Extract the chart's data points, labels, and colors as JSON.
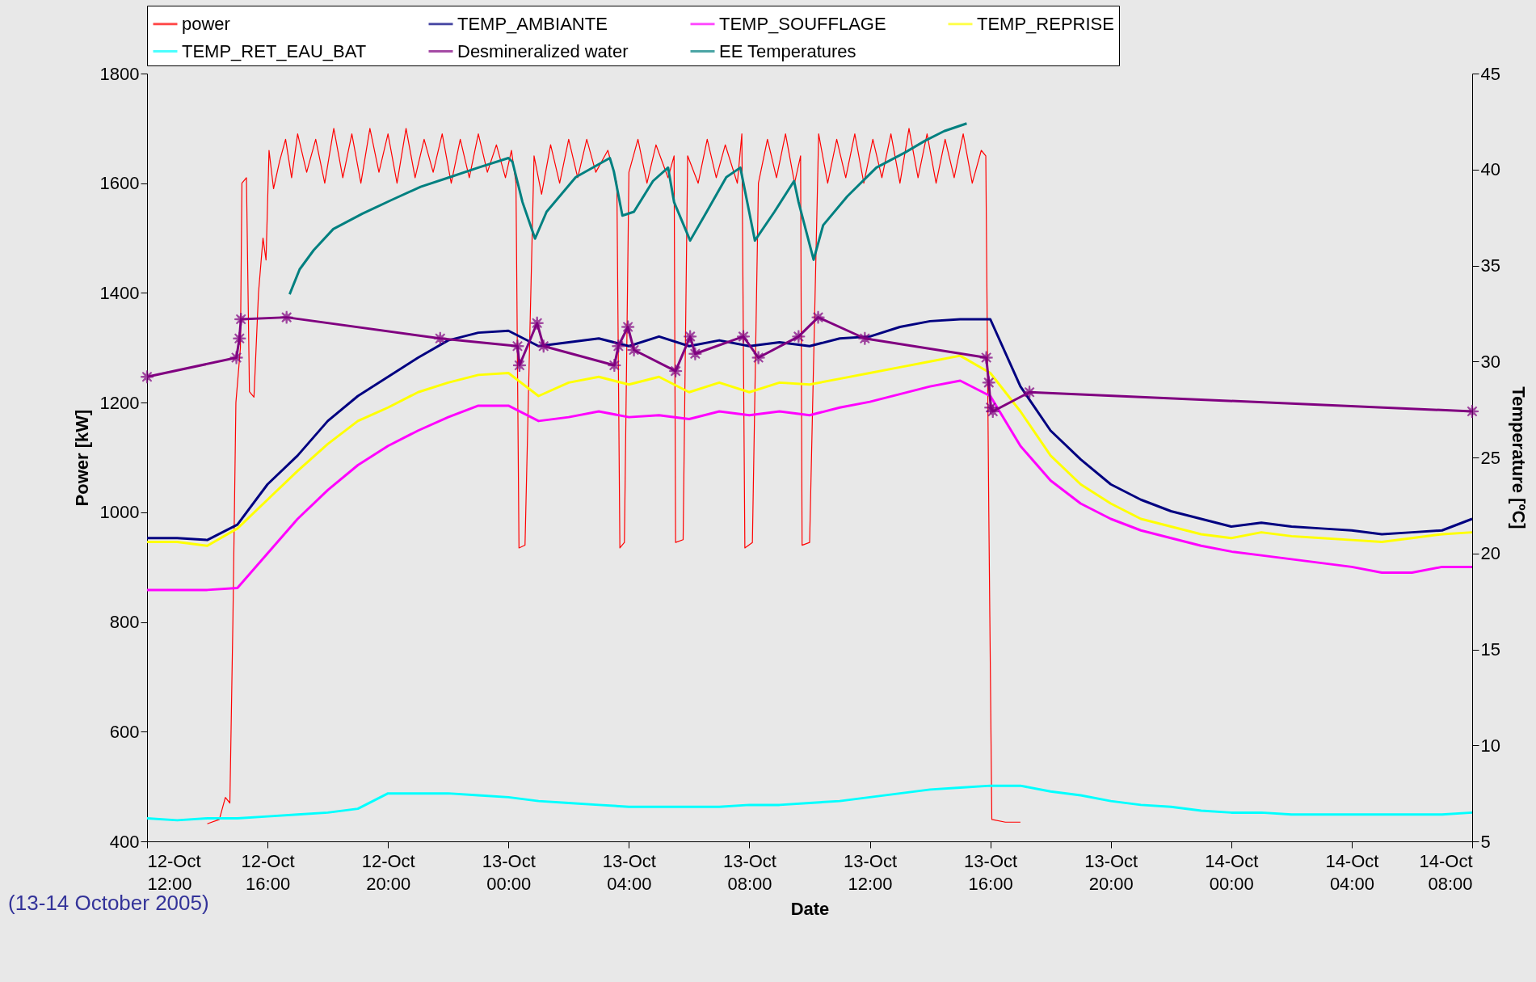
{
  "chart_data": {
    "type": "line",
    "xlabel": "Date",
    "ylabel": "Power [kW]",
    "y2label": "Temperature [ºC]",
    "legend": "top",
    "annotations": [
      "(13-14 October 2005)"
    ],
    "xlim": [
      "--10-12T12:00",
      "--10-14T08:00"
    ],
    "xticks": [
      {
        "value": "--10-12T12:00",
        "label": "12-Oct\n12:00"
      },
      {
        "value": "--10-12T16:00",
        "label": "12-Oct\n16:00"
      },
      {
        "value": "--10-12T20:00",
        "label": "12-Oct\n20:00"
      },
      {
        "value": "--10-13T00:00",
        "label": "13-Oct\n00:00"
      },
      {
        "value": "--10-13T04:00",
        "label": "13-Oct\n04:00"
      },
      {
        "value": "--10-13T08:00",
        "label": "13-Oct\n08:00"
      },
      {
        "value": "--10-13T12:00",
        "label": "13-Oct\n12:00"
      },
      {
        "value": "--10-13T16:00",
        "label": "13-Oct\n16:00"
      },
      {
        "value": "--10-13T20:00",
        "label": "13-Oct\n20:00"
      },
      {
        "value": "--10-14T00:00",
        "label": "14-Oct\n00:00"
      },
      {
        "value": "--10-14T04:00",
        "label": "14-Oct\n04:00"
      },
      {
        "value": "--10-14T08:00",
        "label": "14-Oct\n08:00"
      }
    ],
    "ylim": [
      400,
      1800
    ],
    "yticks": [
      400,
      600,
      800,
      1000,
      1200,
      1400,
      1600,
      1800
    ],
    "y2lim": [
      5,
      45
    ],
    "y2ticks": [
      5,
      10,
      15,
      20,
      25,
      30,
      35,
      40,
      45
    ],
    "x": [
      "--10-12T12:00",
      "--10-12T13:00",
      "--10-12T14:00",
      "--10-12T15:00",
      "--10-12T16:00",
      "--10-12T17:00",
      "--10-12T18:00",
      "--10-12T19:00",
      "--10-12T20:00",
      "--10-12T21:00",
      "--10-12T22:00",
      "--10-12T23:00",
      "--10-13T00:00",
      "--10-13T01:00",
      "--10-13T02:00",
      "--10-13T03:00",
      "--10-13T04:00",
      "--10-13T05:00",
      "--10-13T06:00",
      "--10-13T07:00",
      "--10-13T08:00",
      "--10-13T09:00",
      "--10-13T10:00",
      "--10-13T11:00",
      "--10-13T12:00",
      "--10-13T13:00",
      "--10-13T14:00",
      "--10-13T15:00",
      "--10-13T16:00",
      "--10-13T17:00",
      "--10-13T18:00",
      "--10-13T19:00",
      "--10-13T20:00",
      "--10-13T21:00",
      "--10-13T22:00",
      "--10-13T23:00",
      "--10-14T00:00",
      "--10-14T01:00",
      "--10-14T02:00",
      "--10-14T03:00",
      "--10-14T04:00",
      "--10-14T05:00",
      "--10-14T06:00",
      "--10-14T07:00",
      "--10-14T08:00"
    ],
    "series": [
      {
        "name": "power",
        "color": "#ff0000",
        "x": [
          "--10-12T14:00",
          "--10-12T14:24",
          "--10-12T14:36",
          "--10-12T14:45",
          "--10-12T14:51",
          "--10-12T14:57",
          "--10-12T15:06",
          "--10-12T15:09",
          "--10-12T15:18",
          "--10-12T15:24",
          "--10-12T15:33",
          "--10-12T15:42",
          "--10-12T15:51",
          "--10-12T15:57",
          "--10-12T16:03",
          "--10-12T16:12",
          "--10-12T16:24",
          "--10-12T16:36",
          "--10-12T16:48",
          "--10-12T17:00",
          "--10-12T17:18",
          "--10-12T17:36",
          "--10-12T17:54",
          "--10-12T18:12",
          "--10-12T18:30",
          "--10-12T18:48",
          "--10-12T19:06",
          "--10-12T19:24",
          "--10-12T19:42",
          "--10-12T20:00",
          "--10-12T20:18",
          "--10-12T20:36",
          "--10-12T20:54",
          "--10-12T21:12",
          "--10-12T21:30",
          "--10-12T21:48",
          "--10-12T22:06",
          "--10-12T22:24",
          "--10-12T22:42",
          "--10-12T23:00",
          "--10-12T23:18",
          "--10-12T23:36",
          "--10-12T23:54",
          "--10-13T00:06",
          "--10-13T00:15",
          "--10-13T00:21",
          "--10-13T00:33",
          "--10-13T00:42",
          "--10-13T00:51",
          "--10-13T01:06",
          "--10-13T01:24",
          "--10-13T01:42",
          "--10-13T02:00",
          "--10-13T02:18",
          "--10-13T02:36",
          "--10-13T02:54",
          "--10-13T03:18",
          "--10-13T03:36",
          "--10-13T03:42",
          "--10-13T03:51",
          "--10-13T04:00",
          "--10-13T04:18",
          "--10-13T04:36",
          "--10-13T04:54",
          "--10-13T05:18",
          "--10-13T05:30",
          "--10-13T05:33",
          "--10-13T05:48",
          "--10-13T05:57",
          "--10-13T06:18",
          "--10-13T06:36",
          "--10-13T06:54",
          "--10-13T07:12",
          "--10-13T07:36",
          "--10-13T07:45",
          "--10-13T07:51",
          "--10-13T08:06",
          "--10-13T08:18",
          "--10-13T08:36",
          "--10-13T08:54",
          "--10-13T09:12",
          "--10-13T09:30",
          "--10-13T09:42",
          "--10-13T09:45",
          "--10-13T10:00",
          "--10-13T10:18",
          "--10-13T10:36",
          "--10-13T10:54",
          "--10-13T11:12",
          "--10-13T11:30",
          "--10-13T11:48",
          "--10-13T12:06",
          "--10-13T12:24",
          "--10-13T12:42",
          "--10-13T13:00",
          "--10-13T13:18",
          "--10-13T13:36",
          "--10-13T13:54",
          "--10-13T14:12",
          "--10-13T14:30",
          "--10-13T14:48",
          "--10-13T15:06",
          "--10-13T15:24",
          "--10-13T15:42",
          "--10-13T15:51",
          "--10-13T15:57",
          "--10-13T16:03",
          "--10-13T16:30",
          "--10-13T17:00"
        ],
        "values": [
          432,
          440,
          480,
          470,
          800,
          1200,
          1300,
          1600,
          1610,
          1220,
          1210,
          1400,
          1500,
          1460,
          1660,
          1590,
          1640,
          1680,
          1610,
          1690,
          1620,
          1680,
          1600,
          1700,
          1610,
          1690,
          1600,
          1700,
          1620,
          1690,
          1600,
          1700,
          1610,
          1680,
          1620,
          1690,
          1600,
          1680,
          1610,
          1690,
          1620,
          1670,
          1610,
          1660,
          1600,
          935,
          940,
          1300,
          1650,
          1580,
          1670,
          1600,
          1680,
          1610,
          1680,
          1620,
          1660,
          1600,
          935,
          945,
          1620,
          1680,
          1600,
          1670,
          1610,
          1650,
          945,
          950,
          1650,
          1600,
          1680,
          1610,
          1670,
          1600,
          1690,
          935,
          945,
          1600,
          1680,
          1610,
          1690,
          1600,
          1650,
          940,
          945,
          1690,
          1600,
          1680,
          1610,
          1690,
          1600,
          1680,
          1610,
          1690,
          1600,
          1700,
          1610,
          1690,
          1600,
          1680,
          1610,
          1690,
          1600,
          1660,
          1650,
          1000,
          440,
          435,
          435
        ]
      },
      {
        "name": "TEMP_AMBIANTE",
        "color": "#000080",
        "axis": "y2",
        "values": [
          20.8,
          20.8,
          20.7,
          21.5,
          23.6,
          25.1,
          26.9,
          28.2,
          29.2,
          30.2,
          31.1,
          31.5,
          31.6,
          30.8,
          31.0,
          31.2,
          30.8,
          31.3,
          30.8,
          31.1,
          30.8,
          31.0,
          30.8,
          31.2,
          31.3,
          31.8,
          32.1,
          32.2,
          32.2,
          28.7,
          26.4,
          24.9,
          23.6,
          22.8,
          22.2,
          21.8,
          21.4,
          21.6,
          21.4,
          21.3,
          21.2,
          21.0,
          21.1,
          21.2,
          21.8
        ]
      },
      {
        "name": "TEMP_SOUFFLAGE",
        "color": "#ff00ff",
        "axis": "y2",
        "values": [
          18.1,
          18.1,
          18.1,
          18.2,
          20.0,
          21.8,
          23.3,
          24.6,
          25.6,
          26.4,
          27.1,
          27.7,
          27.7,
          26.9,
          27.1,
          27.4,
          27.1,
          27.2,
          27.0,
          27.4,
          27.2,
          27.4,
          27.2,
          27.6,
          27.9,
          28.3,
          28.7,
          29.0,
          28.2,
          25.6,
          23.8,
          22.6,
          21.8,
          21.2,
          20.8,
          20.4,
          20.1,
          19.9,
          19.7,
          19.5,
          19.3,
          19.0,
          19.0,
          19.3,
          19.3
        ]
      },
      {
        "name": "TEMP_REPRISE",
        "color": "#ffff00",
        "axis": "y2",
        "values": [
          20.6,
          20.6,
          20.4,
          21.3,
          22.8,
          24.3,
          25.7,
          26.9,
          27.6,
          28.4,
          28.9,
          29.3,
          29.4,
          28.2,
          28.9,
          29.2,
          28.8,
          29.2,
          28.4,
          28.9,
          28.4,
          28.9,
          28.8,
          29.1,
          29.4,
          29.7,
          30.0,
          30.3,
          29.4,
          27.4,
          25.1,
          23.6,
          22.6,
          21.8,
          21.4,
          21.0,
          20.8,
          21.1,
          20.9,
          20.8,
          20.7,
          20.6,
          20.8,
          21.0,
          21.1
        ]
      },
      {
        "name": "TEMP_RET_EAU_BAT",
        "color": "#00ffff",
        "axis": "y2",
        "values": [
          6.2,
          6.1,
          6.2,
          6.2,
          6.3,
          6.4,
          6.5,
          6.7,
          7.5,
          7.5,
          7.5,
          7.4,
          7.3,
          7.1,
          7.0,
          6.9,
          6.8,
          6.8,
          6.8,
          6.8,
          6.9,
          6.9,
          7.0,
          7.1,
          7.3,
          7.5,
          7.7,
          7.8,
          7.9,
          7.9,
          7.6,
          7.4,
          7.1,
          6.9,
          6.8,
          6.6,
          6.5,
          6.5,
          6.4,
          6.4,
          6.4,
          6.4,
          6.4,
          6.4,
          6.5
        ]
      },
      {
        "name": "Desmineralized water",
        "color": "#800080",
        "axis": "y2",
        "marker": "star",
        "x": [
          "--10-12T12:00",
          "--10-12T14:58",
          "--10-12T15:04",
          "--10-12T15:07",
          "--10-12T16:38",
          "--10-12T21:44",
          "--10-13T00:18",
          "--10-13T00:22",
          "--10-13T00:57",
          "--10-13T01:10",
          "--10-13T03:31",
          "--10-13T03:39",
          "--10-13T03:58",
          "--10-13T04:10",
          "--10-13T05:33",
          "--10-13T06:02",
          "--10-13T06:12",
          "--10-13T07:48",
          "--10-13T08:18",
          "--10-13T09:38",
          "--10-13T10:17",
          "--10-13T11:50",
          "--10-13T15:52",
          "--10-13T15:57",
          "--10-13T16:01",
          "--10-13T16:05",
          "--10-13T17:18",
          "--10-14T08:00"
        ],
        "values": [
          29.2,
          30.2,
          31.2,
          32.2,
          32.3,
          31.2,
          30.8,
          29.8,
          32.0,
          30.8,
          29.8,
          30.8,
          31.8,
          30.6,
          29.5,
          31.3,
          30.4,
          31.3,
          30.2,
          31.3,
          32.3,
          31.2,
          30.2,
          28.9,
          27.6,
          27.4,
          28.4,
          27.4
        ]
      },
      {
        "name": "EE Temperatures",
        "color": "#008080",
        "axis": "y2",
        "x": [
          "--10-12T16:44",
          "--10-12T17:04",
          "--10-12T17:32",
          "--10-12T18:11",
          "--10-12T19:09",
          "--10-12T20:06",
          "--10-12T21:05",
          "--10-12T22:03",
          "--10-12T23:00",
          "--10-13T00:00",
          "--10-13T00:08",
          "--10-13T00:28",
          "--10-13T00:53",
          "--10-13T01:16",
          "--10-13T02:14",
          "--10-13T03:22",
          "--10-13T03:30",
          "--10-13T03:47",
          "--10-13T04:10",
          "--10-13T04:48",
          "--10-13T05:18",
          "--10-13T05:30",
          "--10-13T06:02",
          "--10-13T06:35",
          "--10-13T07:14",
          "--10-13T07:42",
          "--10-13T08:11",
          "--10-13T08:50",
          "--10-13T09:29",
          "--10-13T09:38",
          "--10-13T10:08",
          "--10-13T10:27",
          "--10-13T11:15",
          "--10-13T12:13",
          "--10-13T13:11",
          "--10-13T13:50",
          "--10-13T14:28",
          "--10-13T15:13"
        ],
        "values": [
          33.5,
          34.8,
          35.8,
          36.9,
          37.7,
          38.4,
          39.1,
          39.6,
          40.1,
          40.6,
          40.4,
          38.3,
          36.4,
          37.8,
          39.6,
          40.6,
          39.9,
          37.6,
          37.8,
          39.4,
          40.1,
          38.3,
          36.3,
          37.8,
          39.6,
          40.1,
          36.3,
          37.8,
          39.4,
          38.3,
          35.3,
          37.1,
          38.6,
          40.1,
          40.9,
          41.5,
          42.0,
          42.4
        ]
      }
    ]
  }
}
